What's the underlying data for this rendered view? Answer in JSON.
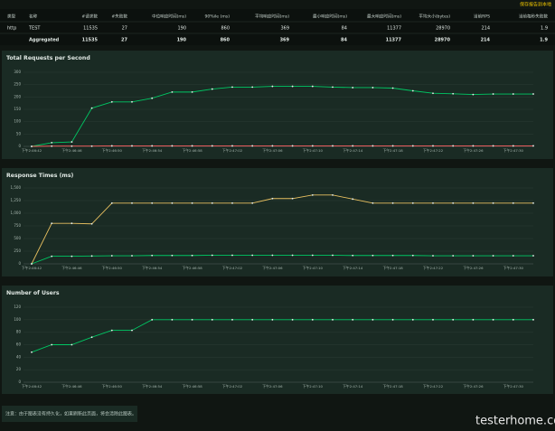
{
  "header": {
    "action": "保存报告到本地"
  },
  "table": {
    "columns": [
      "类型",
      "名称",
      "#请求数",
      "#失败数",
      "中位响应时间(ms)",
      "90%ile (ms)",
      "平均响应时间(ms)",
      "最小响应时间(ms)",
      "最大响应时间(ms)",
      "平均大小(bytes)",
      "当前RPS",
      "当前每秒失败数"
    ],
    "rows": [
      [
        "http",
        "TEST",
        "11535",
        "27",
        "190",
        "860",
        "369",
        "84",
        "11377",
        "28970",
        "214",
        "1.9"
      ],
      [
        null,
        "Aggregated",
        "11535",
        "27",
        "190",
        "860",
        "369",
        "84",
        "11377",
        "28970",
        "214",
        "1.9"
      ]
    ]
  },
  "chart_data": [
    {
      "type": "line",
      "title": "Total Requests per Second",
      "categories": [
        "下午2:46:42",
        null,
        "下午2:46:46",
        null,
        "下午2:46:50",
        null,
        "下午2:46:54",
        null,
        "下午2:46:58",
        null,
        "下午2:47:02",
        null,
        "下午2:47:06",
        null,
        "下午2:47:10",
        null,
        "下午2:47:14",
        null,
        "下午2:47:18",
        null,
        "下午2:47:22",
        null,
        "下午2:47:26",
        null,
        "下午2:47:30",
        null
      ],
      "series": [
        {
          "color": "#00c864",
          "values": [
            0,
            15,
            18,
            155,
            180,
            180,
            195,
            220,
            220,
            232,
            240,
            240,
            243,
            243,
            243,
            240,
            238,
            238,
            236,
            225,
            215,
            213,
            210,
            212,
            212,
            212
          ]
        },
        {
          "color": "#ff6060",
          "values": [
            0,
            1,
            1,
            1,
            2,
            2,
            2,
            2,
            2,
            2,
            2,
            2,
            2,
            2,
            2,
            2,
            2,
            2,
            2,
            2,
            2,
            2,
            2,
            2,
            2,
            2
          ]
        }
      ],
      "ylim": [
        0,
        300
      ],
      "yticks": [
        0,
        50,
        100,
        150,
        200,
        250,
        300
      ],
      "grid": true
    },
    {
      "type": "line",
      "title": "Response Times (ms)",
      "categories": [
        "下午2:46:42",
        null,
        "下午2:46:46",
        null,
        "下午2:46:50",
        null,
        "下午2:46:54",
        null,
        "下午2:46:58",
        null,
        "下午2:47:02",
        null,
        "下午2:47:06",
        null,
        "下午2:47:10",
        null,
        "下午2:47:14",
        null,
        "下午2:47:18",
        null,
        "下午2:47:22",
        null,
        "下午2:47:26",
        null,
        "下午2:47:30",
        null
      ],
      "series": [
        {
          "color": "#e8c060",
          "values": [
            0,
            800,
            800,
            790,
            1200,
            1200,
            1200,
            1200,
            1200,
            1200,
            1200,
            1200,
            1290,
            1290,
            1360,
            1360,
            1280,
            1200,
            1200,
            1200,
            1200,
            1200,
            1200,
            1200,
            1200,
            1200
          ]
        },
        {
          "color": "#00c864",
          "values": [
            0,
            150,
            150,
            155,
            160,
            160,
            165,
            165,
            165,
            170,
            170,
            170,
            170,
            170,
            170,
            170,
            165,
            165,
            165,
            165,
            160,
            160,
            160,
            160,
            160,
            160
          ]
        }
      ],
      "ylim": [
        0,
        1500
      ],
      "yticks": [
        0,
        250,
        500,
        750,
        {
          "value": 1000,
          "label": "1,000"
        },
        {
          "value": 1250,
          "label": "1,250"
        },
        {
          "value": 1500,
          "label": "1,500"
        }
      ],
      "grid": true
    },
    {
      "type": "line",
      "title": "Number of Users",
      "categories": [
        "下午2:46:42",
        null,
        "下午2:46:46",
        null,
        "下午2:46:50",
        null,
        "下午2:46:54",
        null,
        "下午2:46:58",
        null,
        "下午2:47:02",
        null,
        "下午2:47:06",
        null,
        "下午2:47:10",
        null,
        "下午2:47:14",
        null,
        "下午2:47:18",
        null,
        "下午2:47:22",
        null,
        "下午2:47:26",
        null,
        "下午2:47:30",
        null
      ],
      "series": [
        {
          "color": "#00c864",
          "values": [
            48,
            60,
            60,
            72,
            83,
            83,
            100,
            100,
            100,
            100,
            100,
            100,
            100,
            100,
            100,
            100,
            100,
            100,
            100,
            100,
            100,
            100,
            100,
            100,
            100,
            100
          ]
        }
      ],
      "ylim": [
        0,
        120
      ],
      "yticks": [
        0,
        20,
        40,
        60,
        80,
        100,
        120
      ],
      "grid": true
    }
  ],
  "footer": {
    "note": "注意：由于图表没有持久化，如果刷新此页面，将会清除此图表。"
  },
  "watermark": "testerhome.com"
}
